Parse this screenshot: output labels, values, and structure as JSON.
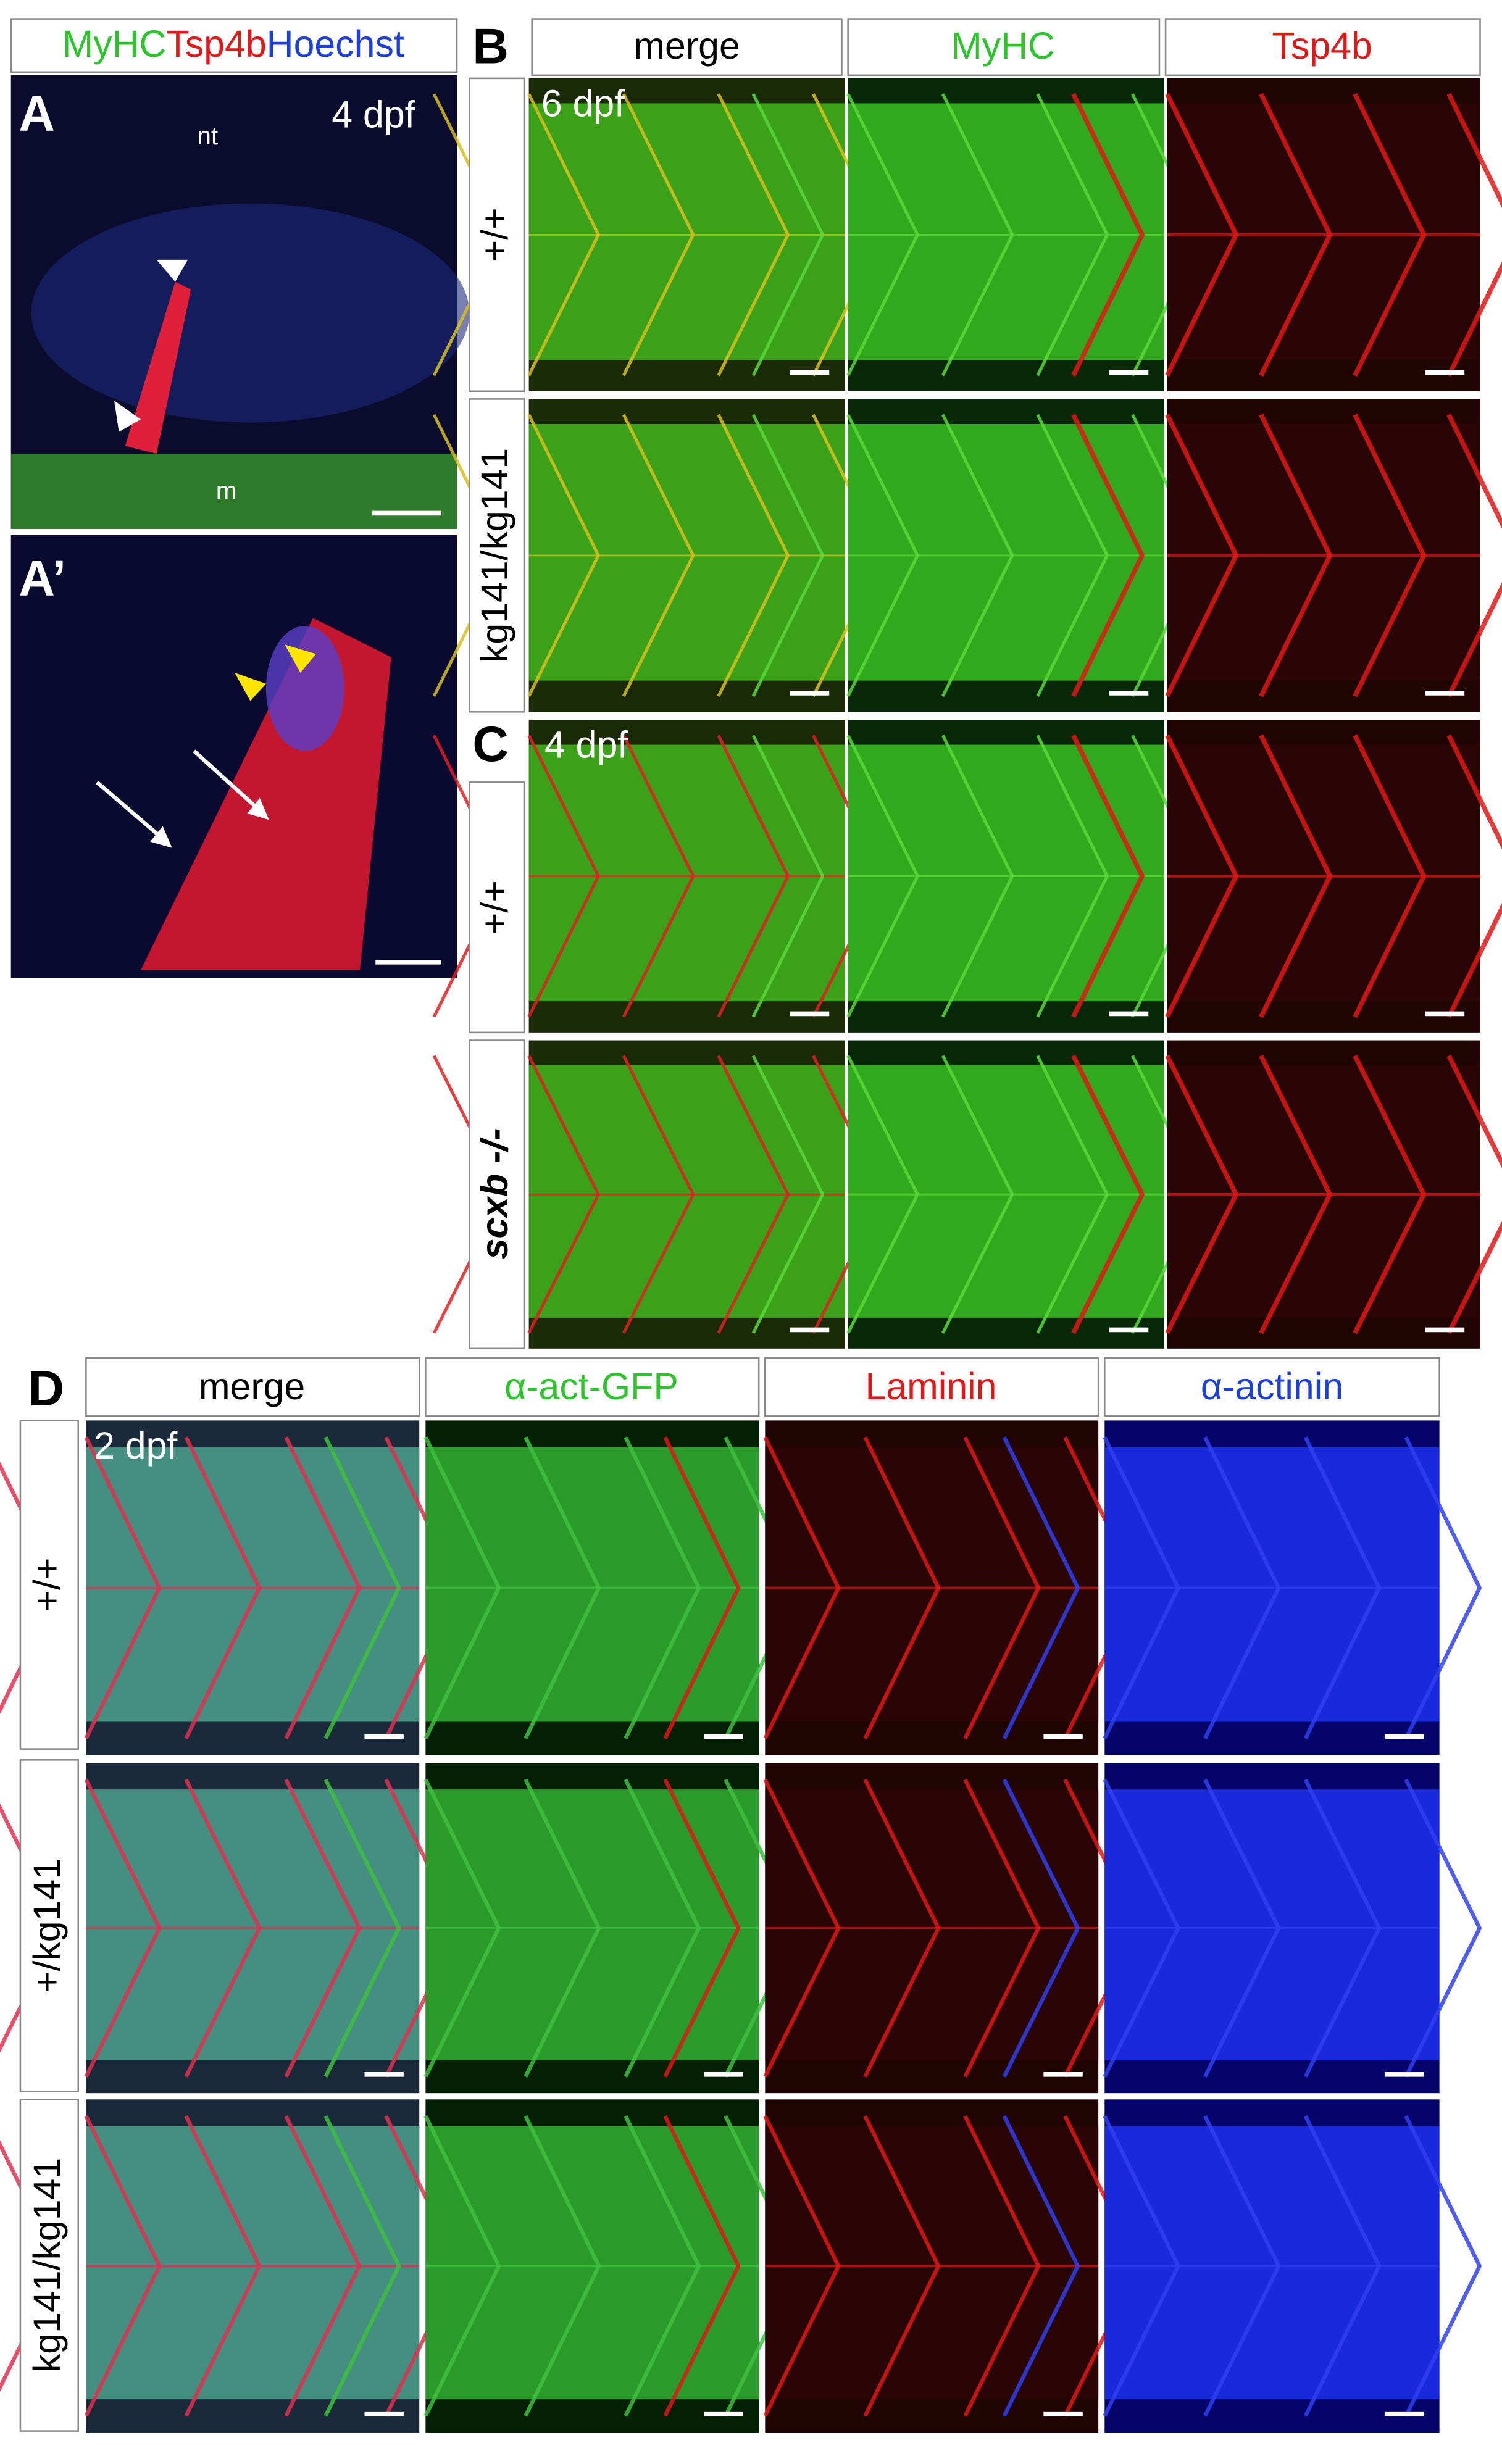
{
  "panel_a": {
    "label": "A",
    "legend": [
      "MyHC",
      "Tsp4b",
      "Hoechst"
    ],
    "stage": "4 dpf",
    "annotations": [
      "nt",
      "m"
    ]
  },
  "panel_a_prime": {
    "label": "A’"
  },
  "panel_b": {
    "label": "B",
    "columns": [
      "merge",
      "MyHC",
      "Tsp4b"
    ],
    "stage": "6 dpf",
    "rows": [
      "+/+",
      "kg141/kg141"
    ]
  },
  "panel_c": {
    "label": "C",
    "stage": "4 dpf",
    "rows": [
      "+/+",
      "scxb -/-"
    ]
  },
  "panel_d": {
    "label": "D",
    "columns": [
      "merge",
      "α-act-GFP",
      "Laminin",
      "α-actinin"
    ],
    "stage": "2 dpf",
    "rows": [
      "+/+",
      "+/kg141",
      "kg141/kg141"
    ]
  }
}
